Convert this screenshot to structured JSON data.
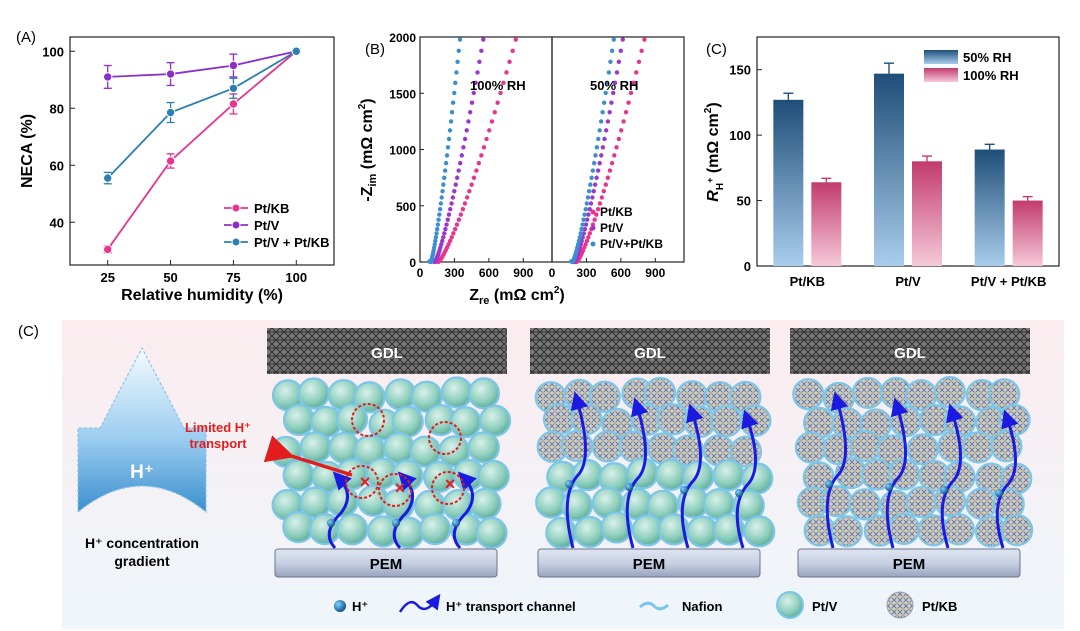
{
  "panelA": {
    "label": "(A)",
    "ylabel": "NECA (%)",
    "xlabel": "Relative humidity (%)",
    "legend": [
      "Pt/KB",
      "Pt/V",
      "Pt/V + Pt/KB"
    ],
    "chart_data": {
      "type": "line",
      "x": [
        25,
        50,
        75,
        100
      ],
      "xticks": [
        "25",
        "50",
        "75",
        "100"
      ],
      "yticks": [
        "40",
        "60",
        "80",
        "100"
      ],
      "xlim": [
        10,
        115
      ],
      "ylim": [
        25,
        105
      ],
      "series": [
        {
          "name": "Pt/KB",
          "values": [
            30.5,
            61.5,
            81.5,
            100
          ],
          "err": [
            1.2,
            2.5,
            3.5,
            0.8
          ],
          "color": "#e8338f"
        },
        {
          "name": "Pt/V",
          "values": [
            91,
            92,
            95,
            100
          ],
          "err": [
            4,
            4,
            4,
            0.8
          ],
          "color": "#8b2fc9"
        },
        {
          "name": "Pt/V + Pt/KB",
          "values": [
            55.5,
            78.5,
            87,
            100
          ],
          "err": [
            2,
            3.5,
            3.5,
            0.8
          ],
          "color": "#2c7fb0"
        }
      ]
    }
  },
  "panelB": {
    "label": "(B)",
    "ylabel_main": "-Z",
    "ylabel_sub": "im",
    "ylabel_unit": " (mΩ cm",
    "ylabel_sup": "2",
    "ylabel_end": ")",
    "xlabel_main": "Z",
    "xlabel_sub": "re",
    "xlabel_unit": " (mΩ cm",
    "xlabel_sup": "2",
    "xlabel_end": ")",
    "left_title": "100% RH",
    "right_title": "50% RH",
    "legend": [
      "Pt/KB",
      "Pt/V",
      "Pt/V+Pt/KB"
    ],
    "chart_data": {
      "type": "scatter",
      "yticks": [
        "0",
        "500",
        "1000",
        "1500",
        "2000"
      ],
      "xticks_left": [
        "0",
        "300",
        "600",
        "900"
      ],
      "xticks_right": [
        "0",
        "300",
        "600",
        "900"
      ],
      "xlim": [
        0,
        1150
      ],
      "ylim": [
        0,
        2000
      ],
      "series_100RH": [
        {
          "name": "Pt/KB",
          "x0": 160,
          "slope": 0.16,
          "color": "#e8338f"
        },
        {
          "name": "Pt/V",
          "x0": 130,
          "slope": 0.1,
          "color": "#9b37d0"
        },
        {
          "name": "Pt/V+Pt/KB",
          "x0": 95,
          "slope": 0.06,
          "color": "#3a8fd0"
        }
      ],
      "series_50RH": [
        {
          "name": "Pt/KB",
          "x0": 215,
          "slope": 0.14,
          "color": "#e8338f"
        },
        {
          "name": "Pt/V",
          "x0": 195,
          "slope": 0.1,
          "color": "#9b37d0"
        },
        {
          "name": "Pt/V+Pt/KB",
          "x0": 180,
          "slope": 0.085,
          "color": "#3a8fd0"
        }
      ]
    }
  },
  "panelC": {
    "label": "(C)",
    "ylabel_main": "R",
    "ylabel_sub": "H",
    "ylabel_sup": "+",
    "ylabel_unit": " (mΩ cm",
    "ylabel_unit_sup": "2",
    "ylabel_end": ")",
    "legend": [
      "50% RH",
      "100% RH"
    ],
    "chart_data": {
      "type": "bar",
      "categories": [
        "Pt/KB",
        "Pt/V",
        "Pt/V + Pt/KB"
      ],
      "yticks": [
        "0",
        "50",
        "100",
        "150"
      ],
      "ylim": [
        0,
        175
      ],
      "series": [
        {
          "name": "50% RH",
          "values": [
            127,
            147,
            89
          ],
          "err": [
            5,
            8,
            4
          ],
          "color": "#1f4e79"
        },
        {
          "name": "100% RH",
          "values": [
            64,
            80,
            50
          ],
          "err": [
            3,
            4,
            3
          ],
          "color": "#c23b6e"
        }
      ]
    }
  },
  "schematic": {
    "label": "(C)",
    "arrow_text": "H⁺",
    "gradient_line1": "H⁺ concentration",
    "gradient_line2": "gradient",
    "limited_line1": "Limited H⁺",
    "limited_line2": "transport",
    "gdl_label": "GDL",
    "pem_label": "PEM",
    "legend": {
      "h": "H⁺",
      "channel": "H⁺ transport channel",
      "nafion": "Nafion",
      "ptv": "Pt/V",
      "ptkb": "Pt/KB"
    }
  }
}
